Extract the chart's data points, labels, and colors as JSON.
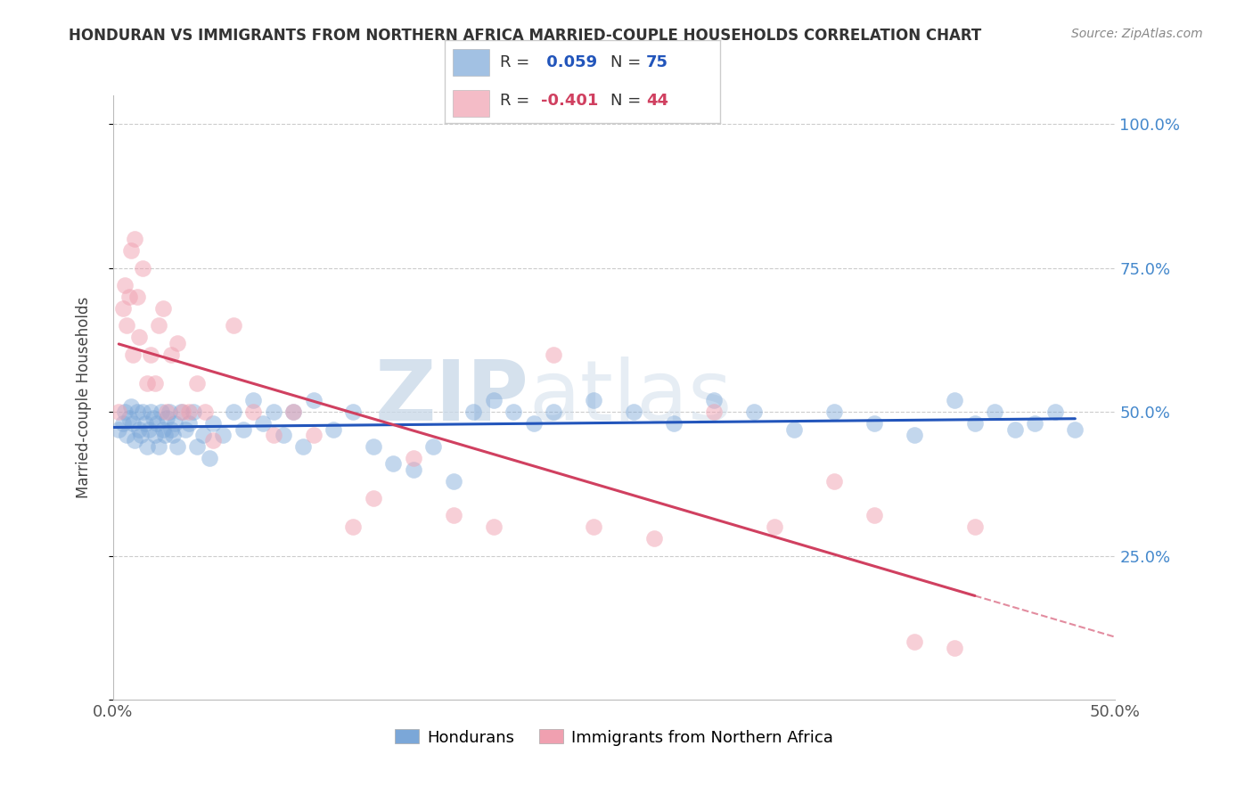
{
  "title": "HONDURAN VS IMMIGRANTS FROM NORTHERN AFRICA MARRIED-COUPLE HOUSEHOLDS CORRELATION CHART",
  "source": "Source: ZipAtlas.com",
  "ylabel": "Married-couple Households",
  "xlim": [
    0.0,
    0.5
  ],
  "ylim": [
    0.0,
    1.05
  ],
  "blue_R": 0.059,
  "blue_N": 75,
  "pink_R": -0.401,
  "pink_N": 44,
  "blue_color": "#7ba7d8",
  "pink_color": "#f0a0b0",
  "blue_line_color": "#2255bb",
  "pink_line_color": "#d04060",
  "legend_blue_label": "Hondurans",
  "legend_pink_label": "Immigrants from Northern Africa",
  "watermark_zip": "ZIP",
  "watermark_atlas": "atlas",
  "blue_x": [
    0.003,
    0.005,
    0.006,
    0.007,
    0.008,
    0.009,
    0.01,
    0.011,
    0.012,
    0.013,
    0.014,
    0.015,
    0.016,
    0.017,
    0.018,
    0.019,
    0.02,
    0.021,
    0.022,
    0.023,
    0.024,
    0.025,
    0.026,
    0.027,
    0.028,
    0.029,
    0.03,
    0.031,
    0.032,
    0.034,
    0.036,
    0.038,
    0.04,
    0.042,
    0.045,
    0.048,
    0.05,
    0.055,
    0.06,
    0.065,
    0.07,
    0.075,
    0.08,
    0.085,
    0.09,
    0.095,
    0.1,
    0.11,
    0.12,
    0.13,
    0.14,
    0.15,
    0.16,
    0.17,
    0.18,
    0.19,
    0.2,
    0.21,
    0.22,
    0.24,
    0.26,
    0.28,
    0.3,
    0.32,
    0.34,
    0.36,
    0.38,
    0.4,
    0.42,
    0.43,
    0.44,
    0.45,
    0.46,
    0.47,
    0.48
  ],
  "blue_y": [
    0.47,
    0.48,
    0.5,
    0.46,
    0.49,
    0.51,
    0.48,
    0.45,
    0.5,
    0.47,
    0.46,
    0.5,
    0.48,
    0.44,
    0.47,
    0.5,
    0.49,
    0.46,
    0.48,
    0.44,
    0.5,
    0.47,
    0.46,
    0.49,
    0.5,
    0.47,
    0.46,
    0.48,
    0.44,
    0.5,
    0.47,
    0.48,
    0.5,
    0.44,
    0.46,
    0.42,
    0.48,
    0.46,
    0.5,
    0.47,
    0.52,
    0.48,
    0.5,
    0.46,
    0.5,
    0.44,
    0.52,
    0.47,
    0.5,
    0.44,
    0.41,
    0.4,
    0.44,
    0.38,
    0.5,
    0.52,
    0.5,
    0.48,
    0.5,
    0.52,
    0.5,
    0.48,
    0.52,
    0.5,
    0.47,
    0.5,
    0.48,
    0.46,
    0.52,
    0.48,
    0.5,
    0.47,
    0.48,
    0.5,
    0.47
  ],
  "pink_x": [
    0.003,
    0.005,
    0.006,
    0.007,
    0.008,
    0.009,
    0.01,
    0.011,
    0.012,
    0.013,
    0.015,
    0.017,
    0.019,
    0.021,
    0.023,
    0.025,
    0.027,
    0.029,
    0.032,
    0.035,
    0.038,
    0.042,
    0.046,
    0.05,
    0.06,
    0.07,
    0.08,
    0.09,
    0.1,
    0.12,
    0.13,
    0.15,
    0.17,
    0.19,
    0.22,
    0.24,
    0.27,
    0.3,
    0.33,
    0.36,
    0.38,
    0.4,
    0.42,
    0.43
  ],
  "pink_y": [
    0.5,
    0.68,
    0.72,
    0.65,
    0.7,
    0.78,
    0.6,
    0.8,
    0.7,
    0.63,
    0.75,
    0.55,
    0.6,
    0.55,
    0.65,
    0.68,
    0.5,
    0.6,
    0.62,
    0.5,
    0.5,
    0.55,
    0.5,
    0.45,
    0.65,
    0.5,
    0.46,
    0.5,
    0.46,
    0.3,
    0.35,
    0.42,
    0.32,
    0.3,
    0.6,
    0.3,
    0.28,
    0.5,
    0.3,
    0.38,
    0.32,
    0.1,
    0.09,
    0.3
  ]
}
